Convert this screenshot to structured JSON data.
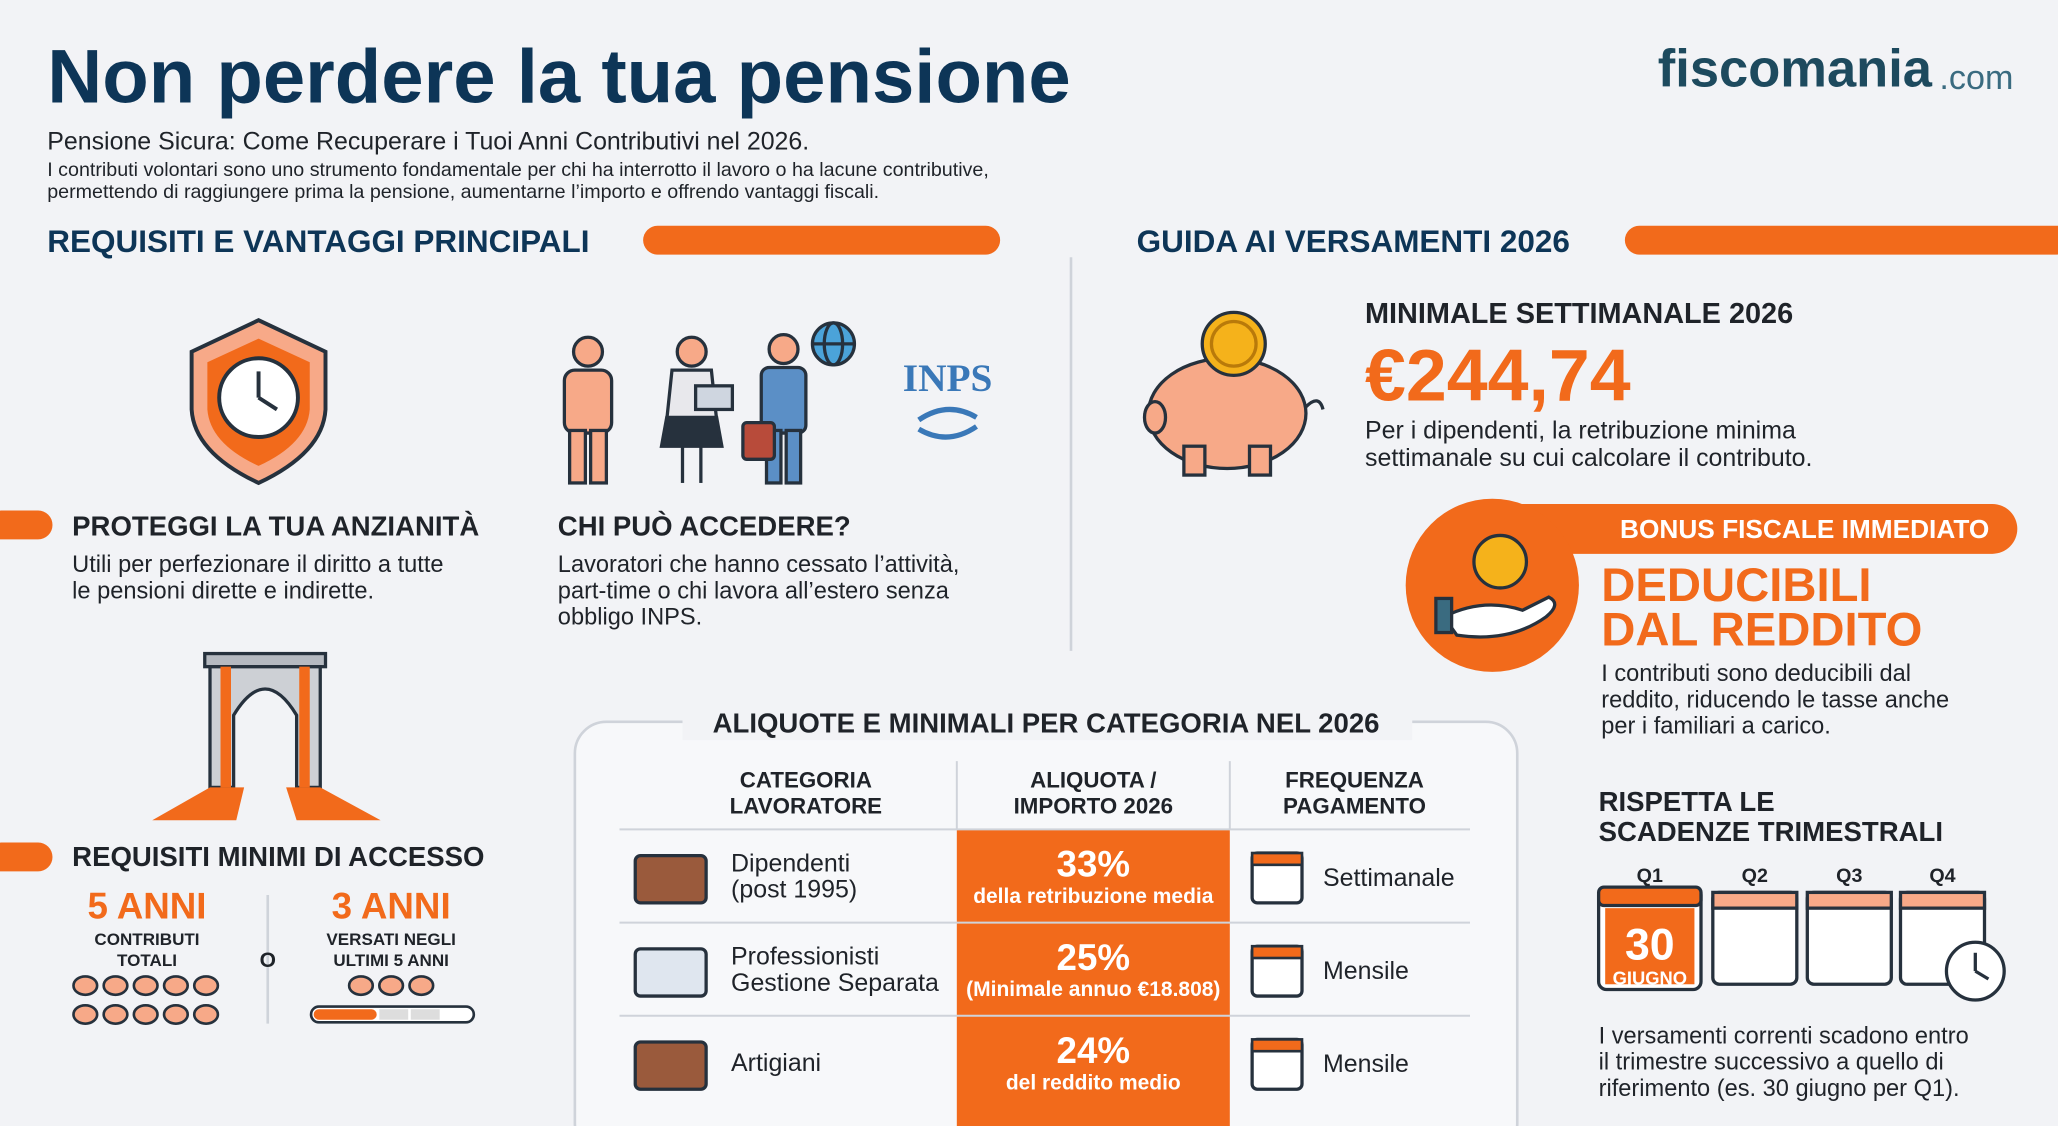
{
  "header": {
    "title": "Non perdere la tua pensione",
    "logo": "fiscomania",
    "logo_suffix": ".com",
    "subtitle": "Pensione Sicura: Come Recuperare i Tuoi Anni Contributivi nel 2026.",
    "intro": [
      "I contributi volontari sono uno strumento fondamentale per chi ha interrotto il lavoro o ha lacune contributive,",
      "permettendo di raggiungere prima la pensione, aumentarne l’importo e offrendo vantaggi fiscali."
    ]
  },
  "left": {
    "heading": "REQUISITI E VANTAGGI PRINCIPALI",
    "protect": {
      "title": "PROTEGGI LA TUA ANZIANITÀ",
      "text": [
        "Utili per perfezionare il diritto a tutte",
        "le pensioni dirette e indirette."
      ]
    },
    "who": {
      "title": "CHI PUÒ ACCEDERE?",
      "text": [
        "Lavoratori che hanno cessato l’attività,",
        "part-time o chi lavora all’estero senza",
        "obbligo INPS."
      ],
      "logo": "INPS"
    },
    "requirements": {
      "title": "REQUISITI MINIMI DI ACCESSO",
      "option1": {
        "value": "5 ANNI",
        "label": [
          "CONTRIBUTI",
          "TOTALI"
        ]
      },
      "separator": "O",
      "option2": {
        "value": "3 ANNI",
        "label": [
          "VERSATI NEGLI",
          "ULTIMI 5 ANNI"
        ]
      }
    }
  },
  "right": {
    "heading": "GUIDA AI VERSAMENTI 2026",
    "minimale": {
      "title": "MINIMALE SETTIMANALE 2026",
      "amount": "€244,74",
      "text": [
        "Per i dipendenti, la retribuzione minima",
        "settimanale su cui calcolare il contributo."
      ]
    },
    "bonus": {
      "badge": "BONUS FISCALE IMMEDIATO",
      "title": [
        "DEDUCIBILI",
        "DAL REDDITO"
      ],
      "text": [
        "I contributi sono deducibili dal",
        "reddito, riducendo le tasse anche",
        "per i familiari a carico."
      ]
    },
    "deadlines": {
      "title": [
        "RISPETTA LE",
        "SCADENZE TRIMESTRALI"
      ],
      "quarters": [
        "Q1",
        "Q2",
        "Q3",
        "Q4"
      ],
      "day": "30",
      "month": "GIUGNO",
      "text": [
        "I versamenti correnti scadono entro",
        "il trimestre successivo a quello di",
        "riferimento (es. 30 giugno per Q1)."
      ]
    }
  },
  "table": {
    "title": "ALIQUOTE E MINIMALI PER CATEGORIA NEL 2026",
    "columns": [
      [
        "CATEGORIA",
        "LAVORATORE"
      ],
      [
        "ALIQUOTA /",
        "IMPORTO 2026"
      ],
      [
        "FREQUENZA",
        "PAGAMENTO"
      ]
    ],
    "rows": [
      {
        "category": [
          "Dipendenti",
          "(post 1995)"
        ],
        "rate": "33%",
        "note": "della retribuzione media",
        "frequency": "Settimanale"
      },
      {
        "category": [
          "Professionisti",
          "Gestione Separata"
        ],
        "rate": "25%",
        "note": "(Minimale annuo €18.808)",
        "frequency": "Mensile"
      },
      {
        "category": [
          "Artigiani"
        ],
        "rate": "24%",
        "note": "del reddito medio",
        "frequency": "Mensile"
      }
    ]
  }
}
